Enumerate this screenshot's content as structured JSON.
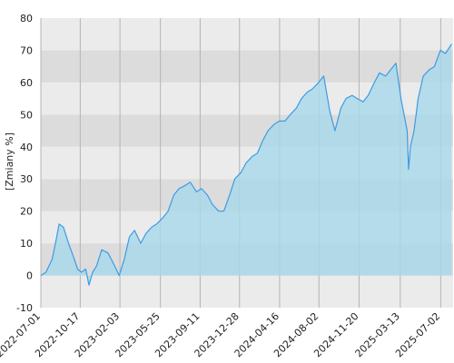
{
  "chart_data": {
    "type": "area",
    "title": "",
    "xlabel": "",
    "ylabel": "[Zmiany %]",
    "ylim": [
      -10,
      80
    ],
    "xlim": [
      "2022-07-01",
      "2025-08-05"
    ],
    "yticks": [
      -10,
      0,
      10,
      20,
      30,
      40,
      50,
      60,
      70,
      80
    ],
    "xticks": [
      "2022-07-01",
      "2022-10-17",
      "2023-02-03",
      "2023-05-25",
      "2023-09-11",
      "2023-12-28",
      "2024-04-16",
      "2024-08-02",
      "2024-11-20",
      "2025-03-13",
      "2025-07-02"
    ],
    "grid": true,
    "legend": "none",
    "colors": {
      "line": "#3c9be6",
      "fill": "#a8d8ea",
      "band_dark": "#dcdcdc",
      "band_light": "#ebebeb",
      "gridline": "#b4b4b4"
    },
    "series": [
      {
        "x": [
          "2022-07-01",
          "2022-07-15",
          "2022-08-01",
          "2022-08-10",
          "2022-08-20",
          "2022-09-01",
          "2022-09-15",
          "2022-10-01",
          "2022-10-10",
          "2022-10-20",
          "2022-11-01",
          "2022-11-10",
          "2022-11-20",
          "2022-12-01",
          "2022-12-15",
          "2023-01-01",
          "2023-01-15",
          "2023-02-01",
          "2023-02-15",
          "2023-03-01",
          "2023-03-15",
          "2023-04-01",
          "2023-04-15",
          "2023-05-01",
          "2023-05-15",
          "2023-06-01",
          "2023-06-15",
          "2023-07-01",
          "2023-07-15",
          "2023-08-01",
          "2023-08-15",
          "2023-09-01",
          "2023-09-15",
          "2023-10-01",
          "2023-10-15",
          "2023-11-01",
          "2023-11-15",
          "2023-12-01",
          "2023-12-15",
          "2024-01-01",
          "2024-01-15",
          "2024-02-01",
          "2024-02-15",
          "2024-03-01",
          "2024-03-15",
          "2024-04-01",
          "2024-04-15",
          "2024-05-01",
          "2024-05-15",
          "2024-06-01",
          "2024-06-15",
          "2024-07-01",
          "2024-07-15",
          "2024-08-01",
          "2024-08-15",
          "2024-09-01",
          "2024-09-15",
          "2024-10-01",
          "2024-10-15",
          "2024-11-01",
          "2024-11-15",
          "2024-12-01",
          "2024-12-15",
          "2025-01-01",
          "2025-01-15",
          "2025-02-01",
          "2025-02-15",
          "2025-03-01",
          "2025-03-15",
          "2025-04-01",
          "2025-04-05",
          "2025-04-10",
          "2025-04-20",
          "2025-05-01",
          "2025-05-15",
          "2025-06-01",
          "2025-06-15",
          "2025-07-01",
          "2025-07-15",
          "2025-08-01"
        ],
        "values": [
          0,
          1,
          5,
          10,
          16,
          15,
          10,
          5,
          2,
          1,
          2,
          -3,
          1,
          3,
          8,
          7,
          4,
          0,
          5,
          12,
          14,
          10,
          13,
          15,
          16,
          18,
          20,
          25,
          27,
          28,
          29,
          26,
          27,
          25,
          22,
          20,
          20,
          25,
          30,
          32,
          35,
          37,
          38,
          42,
          45,
          47,
          48,
          48,
          50,
          52,
          55,
          57,
          58,
          60,
          62,
          51,
          45,
          52,
          55,
          56,
          55,
          54,
          56,
          60,
          63,
          62,
          64,
          66,
          55,
          45,
          33,
          40,
          45,
          55,
          62,
          64,
          65,
          70,
          69,
          72
        ]
      }
    ]
  }
}
